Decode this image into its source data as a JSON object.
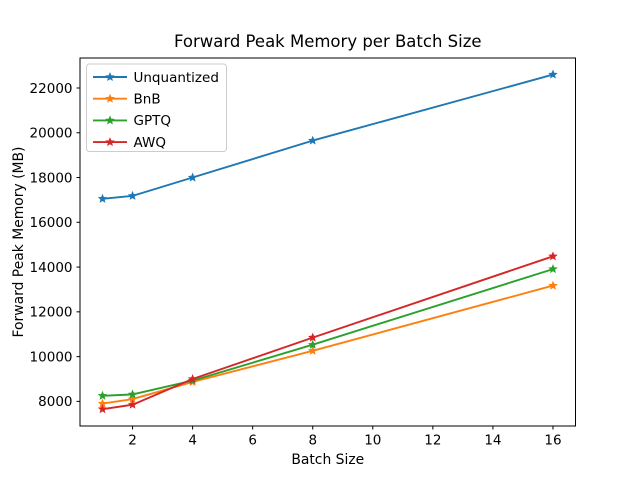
{
  "figure": {
    "background": "#ffffff"
  },
  "chart_data": {
    "type": "line",
    "title": "Forward Peak Memory per Batch Size",
    "xlabel": "Batch Size",
    "ylabel": "Forward Peak Memory (MB)",
    "x": [
      1,
      2,
      4,
      8,
      16
    ],
    "series": [
      {
        "name": "Unquantized",
        "color": "#1f77b4",
        "values": [
          17050,
          17180,
          18000,
          19650,
          22600
        ]
      },
      {
        "name": "BnB",
        "color": "#ff7f0e",
        "values": [
          7900,
          8100,
          8870,
          10260,
          13170
        ]
      },
      {
        "name": "GPTQ",
        "color": "#2ca02c",
        "values": [
          8250,
          8310,
          8930,
          10530,
          13910
        ]
      },
      {
        "name": "AWQ",
        "color": "#d62728",
        "values": [
          7650,
          7850,
          9000,
          10850,
          14480
        ]
      }
    ],
    "xticks": [
      2,
      4,
      6,
      8,
      10,
      12,
      14,
      16
    ],
    "yticks": [
      8000,
      10000,
      12000,
      14000,
      16000,
      18000,
      20000,
      22000
    ],
    "xlim": [
      0.25,
      16.75
    ],
    "ylim": [
      6900,
      23340
    ],
    "grid": false,
    "marker": "star",
    "legend_position": "upper-left",
    "axis_color": "#000000",
    "legend_border_color": "#cccccc"
  }
}
